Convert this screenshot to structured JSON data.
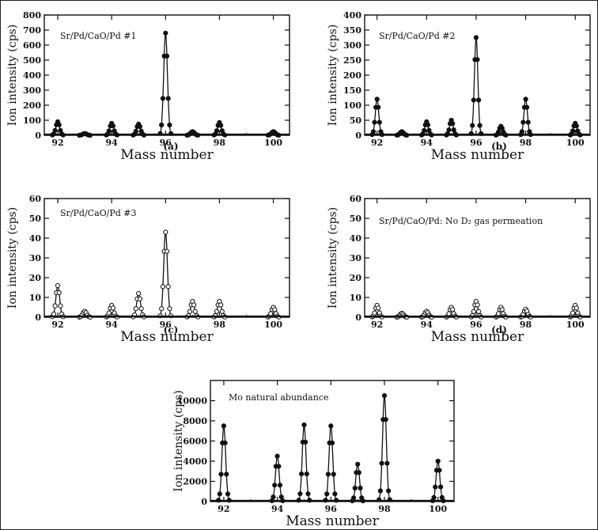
{
  "chart_data": [
    {
      "type": "line",
      "panel_label": "(a)",
      "annotation": "Sr/Pd/CaO/Pd #1",
      "xlabel": "Mass number",
      "ylabel": "Ion intensity (cps)",
      "xlim": [
        91.5,
        100.6
      ],
      "ylim": [
        0,
        800
      ],
      "xticks": [
        92,
        94,
        96,
        98,
        100
      ],
      "yticks": [
        0,
        100,
        200,
        300,
        400,
        500,
        600,
        700,
        800
      ],
      "peaks": [
        {
          "x": 92,
          "y": 90
        },
        {
          "x": 93,
          "y": 12
        },
        {
          "x": 94,
          "y": 80
        },
        {
          "x": 95,
          "y": 75
        },
        {
          "x": 96,
          "y": 680
        },
        {
          "x": 97,
          "y": 25
        },
        {
          "x": 98,
          "y": 85
        },
        {
          "x": 100,
          "y": 25
        }
      ]
    },
    {
      "type": "line",
      "panel_label": "(b)",
      "annotation": "Sr/Pd/CaO/Pd #2",
      "xlabel": "Mass number",
      "ylabel": "Ion intensity (cps)",
      "xlim": [
        91.5,
        100.6
      ],
      "ylim": [
        0,
        400
      ],
      "xticks": [
        92,
        94,
        96,
        98,
        100
      ],
      "yticks": [
        0,
        50,
        100,
        150,
        200,
        250,
        300,
        350,
        400
      ],
      "peaks": [
        {
          "x": 92,
          "y": 120
        },
        {
          "x": 93,
          "y": 12
        },
        {
          "x": 94,
          "y": 45
        },
        {
          "x": 95,
          "y": 50
        },
        {
          "x": 96,
          "y": 325
        },
        {
          "x": 97,
          "y": 30
        },
        {
          "x": 98,
          "y": 120
        },
        {
          "x": 100,
          "y": 40
        }
      ]
    },
    {
      "type": "line",
      "panel_label": "(c)",
      "annotation": "Sr/Pd/CaO/Pd #3",
      "xlabel": "Mass number",
      "ylabel": "Ion intensity (cps)",
      "xlim": [
        91.5,
        100.6
      ],
      "ylim": [
        0,
        60
      ],
      "xticks": [
        92,
        94,
        96,
        98,
        100
      ],
      "yticks": [
        0,
        10,
        20,
        30,
        40,
        50,
        60
      ],
      "peaks": [
        {
          "x": 92,
          "y": 16
        },
        {
          "x": 93,
          "y": 3
        },
        {
          "x": 94,
          "y": 6
        },
        {
          "x": 95,
          "y": 12
        },
        {
          "x": 96,
          "y": 43
        },
        {
          "x": 97,
          "y": 8
        },
        {
          "x": 98,
          "y": 8
        },
        {
          "x": 100,
          "y": 5
        }
      ]
    },
    {
      "type": "line",
      "panel_label": "(d)",
      "annotation": "Sr/Pd/CaO/Pd: No D₂ gas permeation",
      "xlabel": "Mass number",
      "ylabel": "Ion intensity (cps)",
      "xlim": [
        91.5,
        100.6
      ],
      "ylim": [
        0,
        60
      ],
      "xticks": [
        92,
        94,
        96,
        98,
        100
      ],
      "yticks": [
        0,
        10,
        20,
        30,
        40,
        50,
        60
      ],
      "peaks": [
        {
          "x": 92,
          "y": 6
        },
        {
          "x": 93,
          "y": 2
        },
        {
          "x": 94,
          "y": 3
        },
        {
          "x": 95,
          "y": 5
        },
        {
          "x": 96,
          "y": 8
        },
        {
          "x": 97,
          "y": 5
        },
        {
          "x": 98,
          "y": 4
        },
        {
          "x": 100,
          "y": 6
        }
      ]
    },
    {
      "type": "line",
      "panel_label": "",
      "annotation": "Mo natural abundance",
      "xlabel": "Mass number",
      "ylabel": "Ion intensity (cps)",
      "xlim": [
        91.5,
        100.6
      ],
      "ylim": [
        0,
        12000
      ],
      "xticks": [
        92,
        94,
        96,
        98,
        100
      ],
      "yticks": [
        0,
        2000,
        4000,
        6000,
        8000,
        10000
      ],
      "peaks": [
        {
          "x": 92,
          "y": 7500
        },
        {
          "x": 94,
          "y": 4500
        },
        {
          "x": 95,
          "y": 7600
        },
        {
          "x": 96,
          "y": 7500
        },
        {
          "x": 97,
          "y": 3700
        },
        {
          "x": 98,
          "y": 10500
        },
        {
          "x": 100,
          "y": 4000
        }
      ]
    }
  ]
}
